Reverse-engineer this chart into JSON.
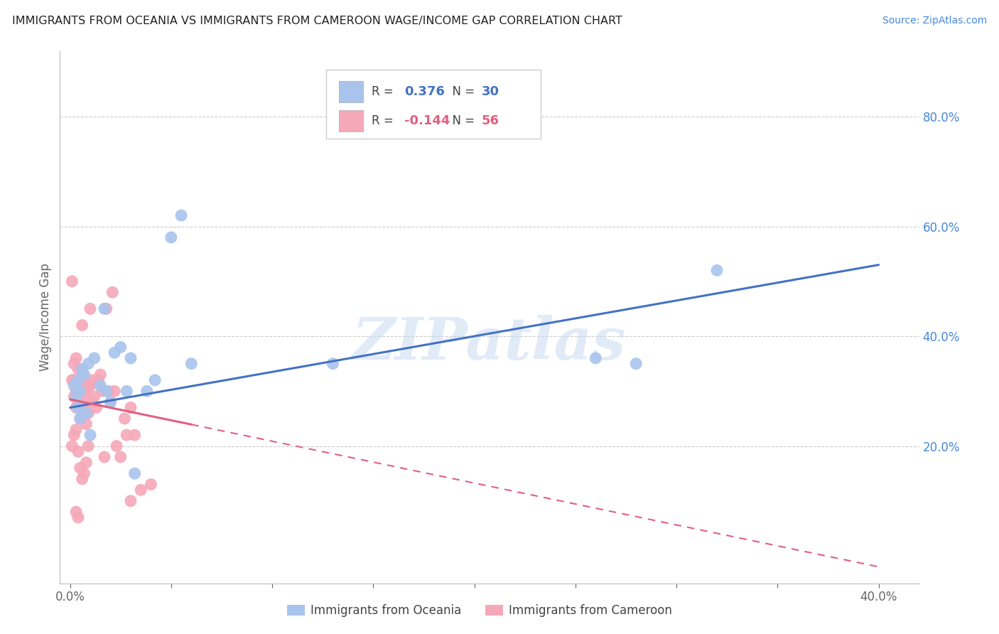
{
  "title": "IMMIGRANTS FROM OCEANIA VS IMMIGRANTS FROM CAMEROON WAGE/INCOME GAP CORRELATION CHART",
  "source": "Source: ZipAtlas.com",
  "ylabel": "Wage/Income Gap",
  "right_yticks": [
    0.0,
    0.2,
    0.4,
    0.6,
    0.8
  ],
  "right_yticklabels": [
    "",
    "20.0%",
    "40.0%",
    "60.0%",
    "80.0%"
  ],
  "xticks": [
    0.0,
    0.05,
    0.1,
    0.15,
    0.2,
    0.25,
    0.3,
    0.35,
    0.4
  ],
  "xticklabels": [
    "0.0%",
    "",
    "",
    "",
    "",
    "",
    "",
    "",
    "40.0%"
  ],
  "xlim": [
    -0.005,
    0.42
  ],
  "ylim": [
    -0.05,
    0.92
  ],
  "legend_oceania": "Immigrants from Oceania",
  "legend_cameroon": "Immigrants from Cameroon",
  "r_oceania": "0.376",
  "n_oceania": "30",
  "r_cameroon": "-0.144",
  "n_cameroon": "56",
  "oceania_color": "#a8c4ed",
  "cameroon_color": "#f5a8b8",
  "oceania_line_color": "#4472c4",
  "cameroon_line_color": "#e06080",
  "watermark": "ZIPatlas",
  "oceania_x": [
    0.002,
    0.003,
    0.004,
    0.004,
    0.005,
    0.005,
    0.006,
    0.007,
    0.008,
    0.009,
    0.01,
    0.012,
    0.015,
    0.017,
    0.018,
    0.02,
    0.022,
    0.025,
    0.028,
    0.03,
    0.032,
    0.038,
    0.042,
    0.05,
    0.055,
    0.06,
    0.13,
    0.26,
    0.28,
    0.32
  ],
  "oceania_y": [
    0.31,
    0.29,
    0.32,
    0.27,
    0.3,
    0.25,
    0.34,
    0.33,
    0.26,
    0.35,
    0.22,
    0.36,
    0.31,
    0.45,
    0.3,
    0.28,
    0.37,
    0.38,
    0.3,
    0.36,
    0.15,
    0.3,
    0.32,
    0.58,
    0.62,
    0.35,
    0.35,
    0.36,
    0.35,
    0.52
  ],
  "cameroon_x": [
    0.001,
    0.001,
    0.002,
    0.002,
    0.002,
    0.003,
    0.003,
    0.003,
    0.004,
    0.004,
    0.004,
    0.005,
    0.005,
    0.006,
    0.006,
    0.007,
    0.007,
    0.008,
    0.008,
    0.009,
    0.009,
    0.01,
    0.01,
    0.011,
    0.011,
    0.012,
    0.013,
    0.014,
    0.015,
    0.016,
    0.017,
    0.018,
    0.019,
    0.02,
    0.021,
    0.022,
    0.023,
    0.025,
    0.027,
    0.028,
    0.03,
    0.032,
    0.035,
    0.04,
    0.001,
    0.002,
    0.003,
    0.004,
    0.005,
    0.006,
    0.007,
    0.008,
    0.009,
    0.003,
    0.004,
    0.03
  ],
  "cameroon_y": [
    0.5,
    0.32,
    0.35,
    0.32,
    0.29,
    0.36,
    0.3,
    0.27,
    0.34,
    0.31,
    0.28,
    0.32,
    0.25,
    0.42,
    0.33,
    0.3,
    0.27,
    0.29,
    0.24,
    0.31,
    0.26,
    0.45,
    0.31,
    0.28,
    0.32,
    0.29,
    0.27,
    0.32,
    0.33,
    0.3,
    0.18,
    0.45,
    0.3,
    0.28,
    0.48,
    0.3,
    0.2,
    0.18,
    0.25,
    0.22,
    0.27,
    0.22,
    0.12,
    0.13,
    0.2,
    0.22,
    0.23,
    0.19,
    0.16,
    0.14,
    0.15,
    0.17,
    0.2,
    0.08,
    0.07,
    0.1
  ],
  "background_color": "#ffffff",
  "grid_color": "#cccccc",
  "oceania_trendline_x0": 0.0,
  "oceania_trendline_x1": 0.4,
  "oceania_trendline_y0": 0.27,
  "oceania_trendline_y1": 0.53,
  "cameroon_trendline_x0": 0.0,
  "cameroon_trendline_x1": 0.4,
  "cameroon_trendline_y0": 0.285,
  "cameroon_trendline_y1": -0.02
}
